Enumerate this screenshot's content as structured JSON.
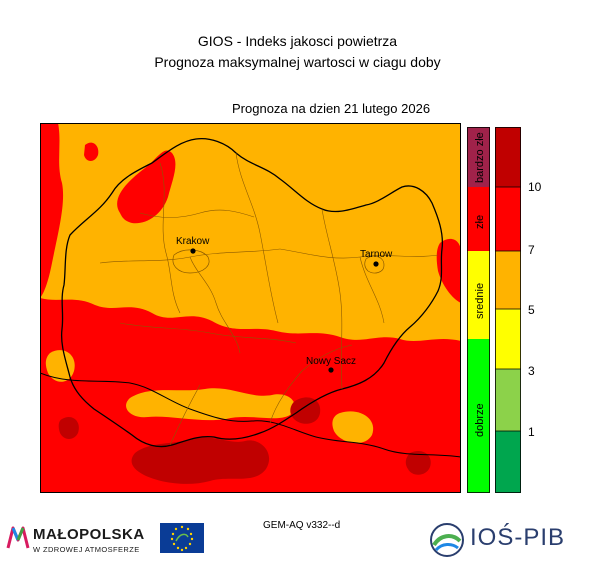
{
  "header": {
    "title_line1": "GIOS - Indeks jakosci powietrza",
    "title_line2": "Prognoza maksymalnej wartosci w ciagu doby",
    "forecast_label": "Prognoza na dzien  21 lutego 2026"
  },
  "map": {
    "cities": [
      {
        "name": "Krakow"
      },
      {
        "name": "Tarnow"
      },
      {
        "name": "Nowy Sacz"
      }
    ]
  },
  "legend": {
    "categories": [
      {
        "label": "bardzo złe",
        "color": "#a0224a"
      },
      {
        "label": "złe",
        "color": "#ff0000"
      },
      {
        "label": "srednie",
        "color": "#ffff00"
      },
      {
        "label": "dobrze",
        "color": "#00ff00"
      }
    ],
    "scale": {
      "colors": [
        "#c00000",
        "#ff0000",
        "#ffb300",
        "#ffff00",
        "#8cd24a",
        "#00a64e"
      ],
      "ticks": [
        "10",
        "7",
        "5",
        "3",
        "1"
      ]
    }
  },
  "footer": {
    "model": "GEM-AQ v332--d",
    "malopolska_name": "MAŁOPOLSKA",
    "malopolska_tagline": "W ZDROWEJ ATMOSFERZE",
    "ios_name": "IOŚ-PIB"
  },
  "colors": {
    "orange": "#ffb300",
    "red": "#ff0000",
    "darkred": "#c00000"
  }
}
